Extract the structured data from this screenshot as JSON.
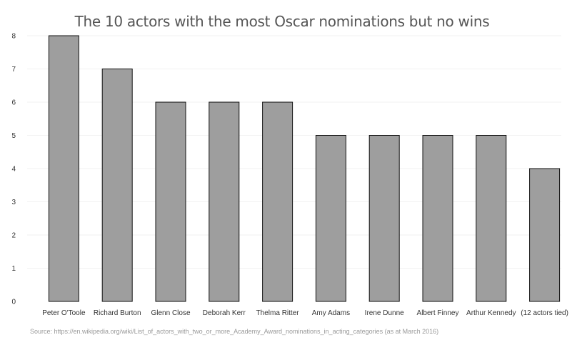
{
  "chart_data": {
    "type": "bar",
    "title": "The 10 actors with the most Oscar nominations but no wins",
    "xlabel": "",
    "ylabel": "",
    "categories": [
      "Peter O'Toole",
      "Richard Burton",
      "Glenn Close",
      "Deborah Kerr",
      "Thelma Ritter",
      "Amy Adams",
      "Irene Dunne",
      "Albert Finney",
      "Arthur Kennedy",
      "(12 actors tied)"
    ],
    "values": [
      8,
      7,
      6,
      6,
      6,
      5,
      5,
      5,
      5,
      4
    ],
    "ylim": [
      0,
      8
    ],
    "yticks": [
      0,
      1,
      2,
      3,
      4,
      5,
      6,
      7,
      8
    ],
    "grid": true,
    "legend": "none",
    "bar_color": "#9e9e9e",
    "bar_edge_color": "#111111"
  },
  "source": "Source: https://en.wikipedia.org/wiki/List_of_actors_with_two_or_more_Academy_Award_nominations_in_acting_categories (as at March 2016)"
}
